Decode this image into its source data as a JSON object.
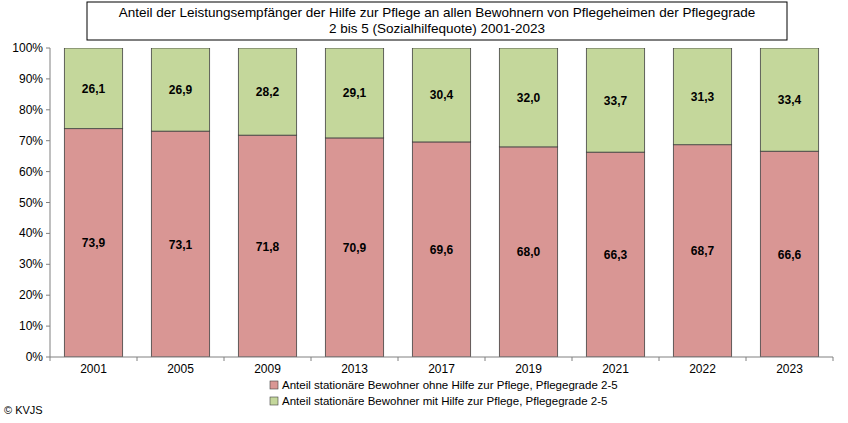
{
  "chart_data": {
    "type": "bar",
    "stacked": true,
    "title": "Anteil der Leistungsempfänger der Hilfe zur Pflege an allen Bewohnern von Pflegeheimen der Pflegegrade\n2 bis 5 (Sozialhilfequote) 2001-2023",
    "categories": [
      "2001",
      "2005",
      "2009",
      "2013",
      "2017",
      "2019",
      "2021",
      "2022",
      "2023"
    ],
    "series": [
      {
        "name": "Anteil stationäre Bewohner ohne Hilfe zur Pflege, Pflegegrade 2-5",
        "color": "#d99694",
        "values": [
          73.9,
          73.1,
          71.8,
          70.9,
          69.6,
          68.0,
          66.3,
          68.7,
          66.6
        ],
        "value_labels": [
          "73,9",
          "73,1",
          "71,8",
          "70,9",
          "69,6",
          "68,0",
          "66,3",
          "68,7",
          "66,6"
        ]
      },
      {
        "name": "Anteil stationäre Bewohner mit Hilfe zur Pflege, Pflegegrade 2-5",
        "color": "#c4d79b",
        "values": [
          26.1,
          26.9,
          28.2,
          29.1,
          30.4,
          32.0,
          33.7,
          31.3,
          33.4
        ],
        "value_labels": [
          "26,1",
          "26,9",
          "28,2",
          "29,1",
          "30,4",
          "32,0",
          "33,7",
          "31,3",
          "33,4"
        ]
      }
    ],
    "ylim": [
      0,
      100
    ],
    "yticks": [
      {
        "value": 0,
        "label": "0%"
      },
      {
        "value": 10,
        "label": "10%"
      },
      {
        "value": 20,
        "label": "20%"
      },
      {
        "value": 30,
        "label": "30%"
      },
      {
        "value": 40,
        "label": "40%"
      },
      {
        "value": 50,
        "label": "50%"
      },
      {
        "value": 60,
        "label": "60%"
      },
      {
        "value": 70,
        "label": "70%"
      },
      {
        "value": 80,
        "label": "80%"
      },
      {
        "value": 90,
        "label": "90%"
      },
      {
        "value": 100,
        "label": "100%"
      }
    ],
    "grid": false,
    "legend": "bottom",
    "data_labels": true,
    "annotations": [
      "© KVJS"
    ]
  }
}
